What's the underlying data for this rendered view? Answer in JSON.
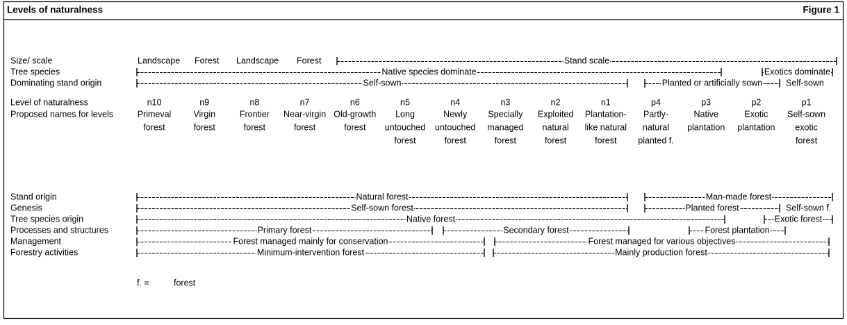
{
  "header": {
    "title": "Levels of naturalness",
    "figure": "Figure 1"
  },
  "top_rows": [
    {
      "label": "Size/ scale",
      "words": [
        "Landscape",
        "Forest",
        "Landscape",
        "Forest"
      ],
      "bars": [
        "Stand scale"
      ]
    },
    {
      "label": "Tree species",
      "bars": [
        "Native species dominate",
        "Exotics dominate"
      ]
    },
    {
      "label": "Dominating stand origin",
      "bars": [
        "Self-sown",
        "Planted or artificially sown"
      ],
      "words": [
        "Self-sown"
      ]
    }
  ],
  "levels": {
    "code_label": "Level of naturalness",
    "name_label": "Proposed names for levels",
    "items": [
      {
        "code": "n10",
        "name": [
          "Primeval",
          "forest"
        ]
      },
      {
        "code": "n9",
        "name": [
          "Virgin",
          "forest"
        ]
      },
      {
        "code": "n8",
        "name": [
          "Frontier",
          "forest"
        ]
      },
      {
        "code": "n7",
        "name": [
          "Near-virgin",
          "forest"
        ]
      },
      {
        "code": "n6",
        "name": [
          "Old-growth",
          "forest"
        ]
      },
      {
        "code": "n5",
        "name": [
          "Long",
          "untouched",
          "forest"
        ]
      },
      {
        "code": "n4",
        "name": [
          "Newly",
          "untouched",
          "forest"
        ]
      },
      {
        "code": "n3",
        "name": [
          "Specially",
          "managed",
          "forest"
        ]
      },
      {
        "code": "n2",
        "name": [
          "Exploited",
          "natural",
          "forest"
        ]
      },
      {
        "code": "n1",
        "name": [
          "Plantation-",
          "like natural",
          "forest"
        ]
      },
      {
        "code": "p4",
        "name": [
          "Partly-",
          "natural",
          "planted f."
        ]
      },
      {
        "code": "p3",
        "name": [
          "Native",
          "plantation"
        ]
      },
      {
        "code": "p2",
        "name": [
          "Exotic",
          "plantation"
        ]
      },
      {
        "code": "p1",
        "name": [
          "Self-sown",
          "exotic",
          "forest"
        ]
      }
    ]
  },
  "bottom_rows": [
    {
      "label": "Stand origin",
      "bars": [
        "Natural forest",
        "Man-made forest"
      ]
    },
    {
      "label": "Genesis",
      "bars": [
        "Self-sown forest",
        "Planted forest"
      ],
      "words": [
        "Self-sown f."
      ]
    },
    {
      "label": "Tree species origin",
      "bars": [
        "Native forest",
        "Exotic forest"
      ]
    },
    {
      "label": "Processes and structures",
      "bars": [
        "Primary forest",
        "Secondary forest",
        "Forest plantation"
      ]
    },
    {
      "label": "Management",
      "bars": [
        "Forest managed mainly for conservation",
        "Forest managed for various objectives"
      ]
    },
    {
      "label": "Forestry activities",
      "bars": [
        "Minimum-intervention forest",
        "Mainly production forest"
      ]
    }
  ],
  "footnote": {
    "abbr": "f. =",
    "meaning": "forest"
  }
}
